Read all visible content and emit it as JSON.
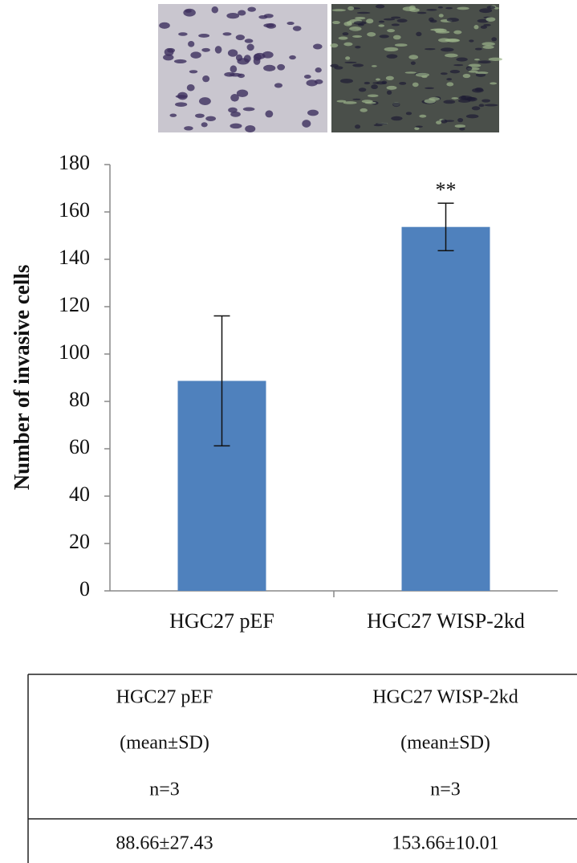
{
  "chart_data": {
    "type": "bar",
    "ylabel": "Number of invasive cells",
    "categories": [
      "HGC27 pEF",
      "HGC27 WISP-2kd"
    ],
    "values": [
      88.66,
      153.66
    ],
    "errors": [
      27.43,
      10.01
    ],
    "color": "#4f81bd",
    "ylim": [
      0,
      180
    ],
    "yticks": [
      0,
      20,
      40,
      60,
      80,
      100,
      120,
      140,
      160,
      180
    ],
    "annotations": [
      {
        "text": "**"
      }
    ]
  },
  "table": {
    "header": [
      [
        "HGC27 pEF",
        "(mean±SD)",
        "n=3"
      ],
      [
        "HGC27 WISP-2kd",
        "(mean±SD)",
        "n=3"
      ]
    ],
    "rows": [
      [
        "88.66±27.43",
        "153.66±10.01"
      ]
    ]
  }
}
